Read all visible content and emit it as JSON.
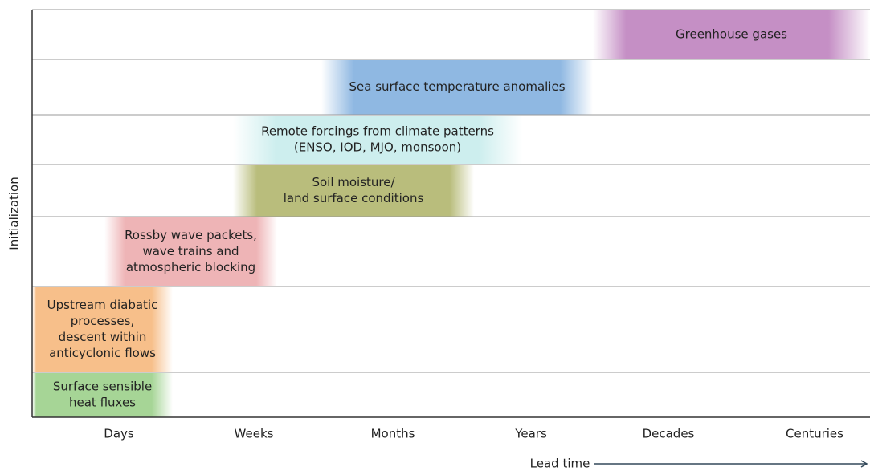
{
  "y_axis_label": "Initialization",
  "x_axis": {
    "categories": [
      "Days",
      "Weeks",
      "Months",
      "Years",
      "Decades",
      "Centuries"
    ],
    "label": "Lead time"
  },
  "rows": [
    {
      "lines": [
        "Greenhouse gases"
      ],
      "color": "#c58fc5"
    },
    {
      "lines": [
        "Sea surface temperature anomalies"
      ],
      "color": "#8fb8e2"
    },
    {
      "lines": [
        "Remote forcings from climate patterns",
        "(ENSO, IOD, MJO, monsoon)"
      ],
      "color": "#cdeeee"
    },
    {
      "lines": [
        "Soil moisture/",
        "land surface conditions"
      ],
      "color": "#b9bd7c"
    },
    {
      "lines": [
        "Rossby wave packets,",
        "wave trains and",
        "atmospheric blocking"
      ],
      "color": "#eeb4b6"
    },
    {
      "lines": [
        "Upstream diabatic",
        "processes,",
        "descent within",
        "anticyclonic flows"
      ],
      "color": "#f7bf8a"
    },
    {
      "lines": [
        "Surface sensible",
        "heat fluxes"
      ],
      "color": "#a6d596"
    }
  ]
}
